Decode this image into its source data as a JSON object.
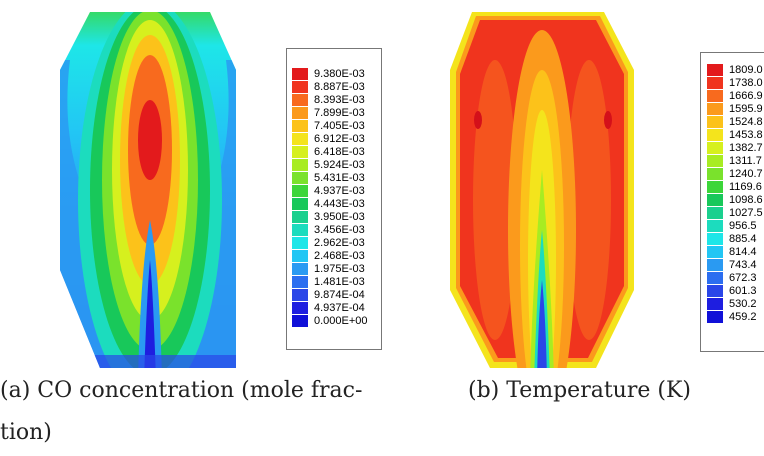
{
  "figure": {
    "panels": [
      {
        "id": "a",
        "caption_line1": "(a)  CO concentration (mole frac-",
        "caption_line2": "tion)",
        "legend": {
          "colors": [
            "#e31a1c",
            "#f0341e",
            "#f86a1e",
            "#fb9a1c",
            "#fcc21a",
            "#f4e41c",
            "#d6f01e",
            "#a8ec22",
            "#7ae22c",
            "#3cd63a",
            "#18c85a",
            "#1ad08e",
            "#1cdcbe",
            "#1ee6e8",
            "#22c6f4",
            "#2a9af2",
            "#2c6ef0",
            "#2a46e8",
            "#1e1ee0"
          ],
          "labels": [
            "9.380E-03",
            "8.887E-03",
            "8.393E-03",
            "7.899E-03",
            "7.405E-03",
            "6.912E-03",
            "6.418E-03",
            "5.924E-03",
            "5.431E-03",
            "4.937E-03",
            "4.443E-03",
            "3.950E-03",
            "3.456E-03",
            "2.962E-03",
            "2.468E-03",
            "1.975E-03",
            "1.481E-03",
            "9.874E-04",
            "4.937E-04",
            "0.000E+00"
          ]
        }
      },
      {
        "id": "b",
        "caption_line1": "(b)  Temperature (K)",
        "legend": {
          "colors": [
            "#e31a1c",
            "#f0341e",
            "#f86a1e",
            "#fb9a1c",
            "#fcc21a",
            "#f4e41c",
            "#d6f01e",
            "#a8ec22",
            "#7ae22c",
            "#3cd63a",
            "#18c85a",
            "#1ad08e",
            "#1cdcbe",
            "#1ee6e8",
            "#22c6f4",
            "#2a9af2",
            "#2c6ef0",
            "#2a46e8",
            "#1e1ee0"
          ],
          "labels": [
            "1809.0",
            "1738.0",
            "1666.9",
            "1595.9",
            "1524.8",
            "1453.8",
            "1382.7",
            "1311.7",
            "1240.7",
            "1169.6",
            "1098.6",
            "1027.5",
            "956.5",
            "885.4",
            "814.4",
            "743.4",
            "672.3",
            "601.3",
            "530.2",
            "459.2"
          ]
        }
      }
    ]
  }
}
